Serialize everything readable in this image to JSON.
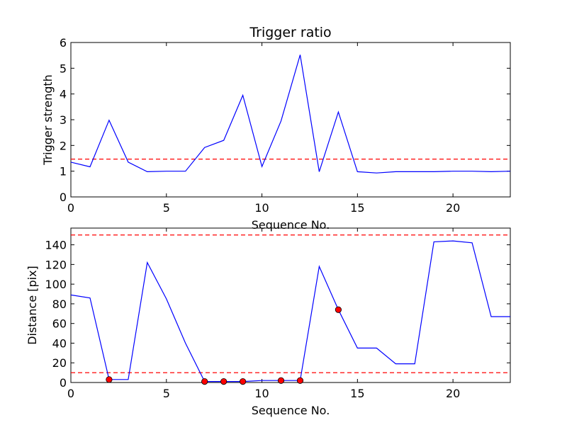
{
  "chart_data": [
    {
      "type": "line",
      "title": "Trigger ratio",
      "xlabel": "Sequence No.",
      "ylabel": "Trigger strength",
      "xlim": [
        0,
        23
      ],
      "ylim": [
        0,
        6
      ],
      "xticks": [
        "0",
        "5",
        "10",
        "15",
        "20"
      ],
      "yticks": [
        "0",
        "1",
        "2",
        "3",
        "4",
        "5",
        "6"
      ],
      "grid": false,
      "series": [
        {
          "x": [
            0,
            1,
            2,
            3,
            4,
            5,
            6,
            7,
            8,
            9,
            10,
            11,
            12,
            13,
            14,
            15,
            16,
            17,
            18,
            19,
            20,
            21,
            22,
            23
          ],
          "y": [
            1.35,
            1.17,
            2.98,
            1.35,
            0.98,
            1.0,
            1.0,
            1.92,
            2.2,
            3.95,
            1.18,
            2.95,
            5.52,
            0.98,
            3.3,
            0.98,
            0.93,
            0.98,
            0.98,
            0.98,
            1.0,
            1.0,
            0.98,
            1.0
          ],
          "color": "#0000ff"
        }
      ],
      "thresholds": [
        {
          "y": 1.47,
          "color": "#ff0000",
          "style": "dashed"
        }
      ]
    },
    {
      "type": "line",
      "title": "",
      "xlabel": "Sequence No.",
      "ylabel": "Distance [pix]",
      "xlim": [
        0,
        23
      ],
      "ylim": [
        0,
        157
      ],
      "xticks": [
        "0",
        "5",
        "10",
        "15",
        "20"
      ],
      "yticks": [
        "0",
        "20",
        "40",
        "60",
        "80",
        "100",
        "120",
        "140"
      ],
      "grid": false,
      "series": [
        {
          "x": [
            0,
            1,
            2,
            3,
            4,
            5,
            6,
            7,
            8,
            9,
            10,
            11,
            12,
            13,
            14,
            15,
            16,
            17,
            18,
            19,
            20,
            21,
            22,
            23
          ],
          "y": [
            89,
            86,
            3,
            3,
            122,
            85,
            40,
            1,
            1,
            1,
            2,
            2,
            2,
            118,
            74,
            35,
            35,
            19,
            19,
            143,
            144,
            142,
            67,
            67
          ],
          "color": "#0000ff"
        }
      ],
      "markers": {
        "x": [
          2,
          7,
          8,
          9,
          11,
          12,
          14
        ],
        "y": [
          3,
          1,
          1,
          1,
          2,
          2,
          74
        ],
        "color": "#ff0000"
      },
      "thresholds": [
        {
          "y": 150,
          "color": "#ff0000",
          "style": "dashed"
        },
        {
          "y": 10,
          "color": "#ff0000",
          "style": "dashed"
        }
      ]
    }
  ]
}
